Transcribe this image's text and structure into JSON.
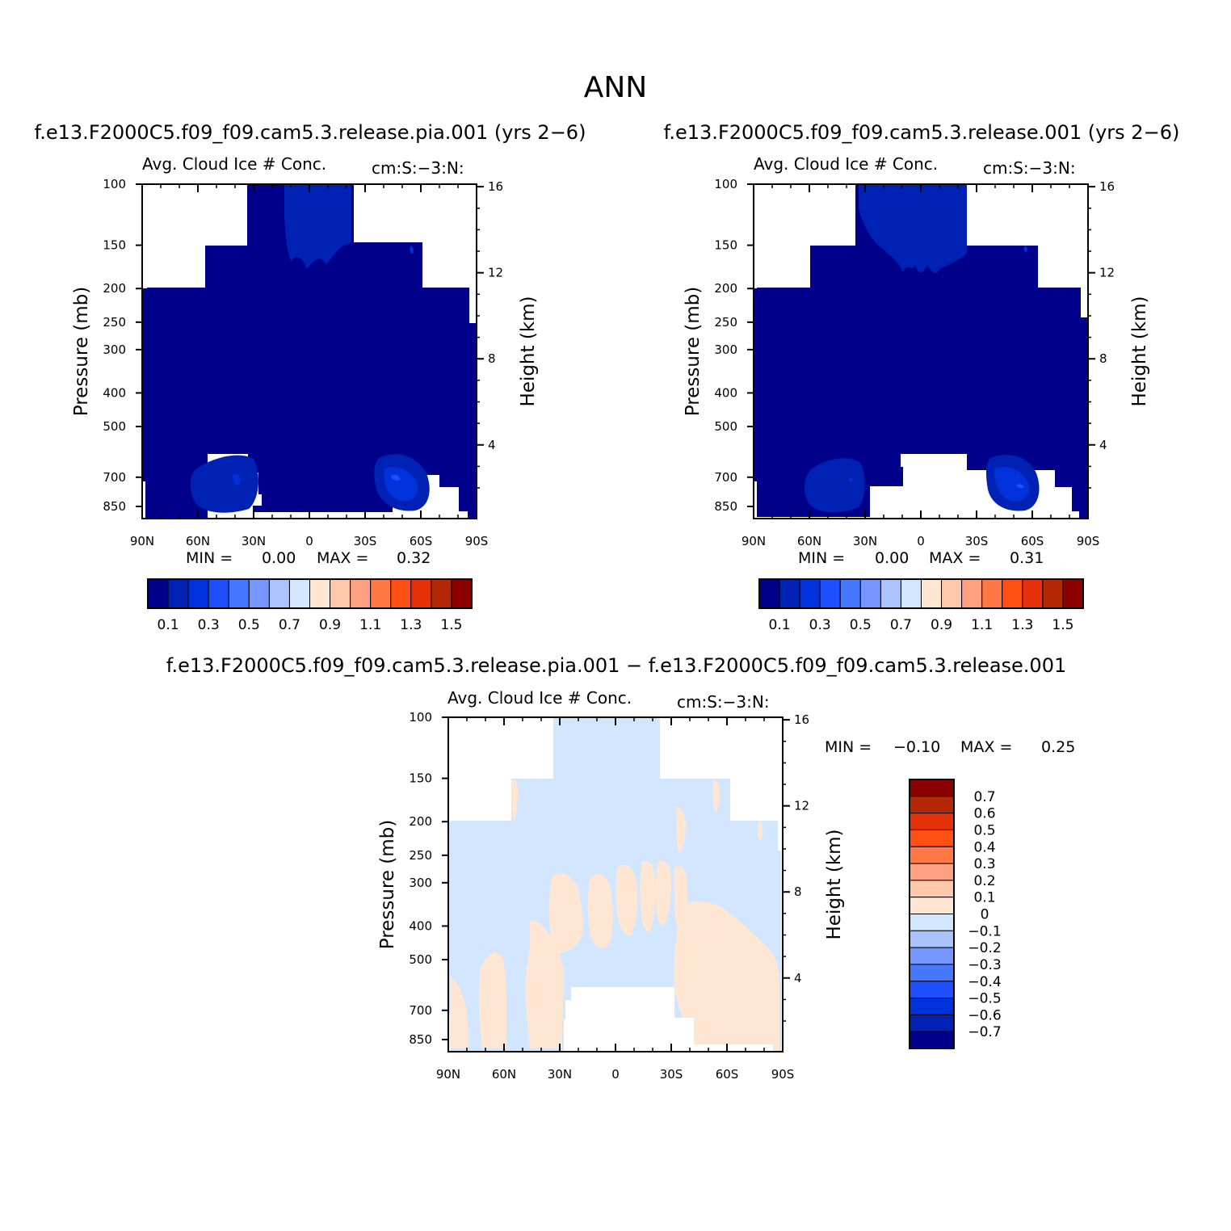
{
  "figure_title": "ANN",
  "panels": [
    {
      "case_title": "f.e13.F2000C5.f09_f09.cam5.3.release.pia.001 (yrs 2−6)",
      "var_title": "Avg. Cloud Ice # Conc.",
      "units": "cm:S:−3:N:",
      "ylabel": "Pressure (mb)",
      "ylabel_right": "Height (km)",
      "min_label": "MIN =",
      "min_value": "0.00",
      "max_label": "MAX =",
      "max_value": "0.32"
    },
    {
      "case_title": "f.e13.F2000C5.f09_f09.cam5.3.release.001 (yrs 2−6)",
      "var_title": "Avg. Cloud Ice # Conc.",
      "units": "cm:S:−3:N:",
      "ylabel": "Pressure (mb)",
      "ylabel_right": "Height (km)",
      "min_label": "MIN =",
      "min_value": "0.00",
      "max_label": "MAX =",
      "max_value": "0.31"
    },
    {
      "case_title": "f.e13.F2000C5.f09_f09.cam5.3.release.pia.001 − f.e13.F2000C5.f09_f09.cam5.3.release.001",
      "var_title": "Avg. Cloud Ice # Conc.",
      "units": "cm:S:−3:N:",
      "ylabel": "Pressure (mb)",
      "ylabel_right": "Height (km)",
      "min_label": "MIN =",
      "min_value": "−0.10",
      "max_label": "MAX =",
      "max_value": "0.25"
    }
  ],
  "chart_data": [
    {
      "type": "heatmap",
      "title": "Avg. Cloud Ice # Conc.",
      "units": "cm:S:−3:N:",
      "x_ticks": [
        "90N",
        "60N",
        "30N",
        "0",
        "30S",
        "60S",
        "90S"
      ],
      "x_values": [
        90,
        60,
        30,
        0,
        -30,
        -60,
        -90
      ],
      "y_ticks": [
        "100",
        "150",
        "200",
        "250",
        "300",
        "400",
        "500",
        "700",
        "850"
      ],
      "y_values": [
        100,
        150,
        200,
        250,
        300,
        400,
        500,
        700,
        850
      ],
      "y_scale": "log",
      "y_right_ticks": [
        "16",
        "12",
        "8",
        "4"
      ],
      "min": 0.0,
      "max": 0.32,
      "levels": [
        0.1,
        0.2,
        0.3,
        0.4,
        0.5,
        0.6,
        0.7,
        0.8,
        0.9,
        1.0,
        1.1,
        1.2,
        1.3,
        1.4,
        1.5
      ],
      "colorbar_labels": [
        "0.1",
        "0.3",
        "0.5",
        "0.7",
        "0.9",
        "1.1",
        "1.3",
        "1.5"
      ]
    },
    {
      "type": "heatmap",
      "title": "Avg. Cloud Ice # Conc.",
      "units": "cm:S:−3:N:",
      "x_ticks": [
        "90N",
        "60N",
        "30N",
        "0",
        "30S",
        "60S",
        "90S"
      ],
      "x_values": [
        90,
        60,
        30,
        0,
        -30,
        -60,
        -90
      ],
      "y_ticks": [
        "100",
        "150",
        "200",
        "250",
        "300",
        "400",
        "500",
        "700",
        "850"
      ],
      "y_values": [
        100,
        150,
        200,
        250,
        300,
        400,
        500,
        700,
        850
      ],
      "y_scale": "log",
      "y_right_ticks": [
        "16",
        "12",
        "8",
        "4"
      ],
      "min": 0.0,
      "max": 0.31,
      "levels": [
        0.1,
        0.2,
        0.3,
        0.4,
        0.5,
        0.6,
        0.7,
        0.8,
        0.9,
        1.0,
        1.1,
        1.2,
        1.3,
        1.4,
        1.5
      ],
      "colorbar_labels": [
        "0.1",
        "0.3",
        "0.5",
        "0.7",
        "0.9",
        "1.1",
        "1.3",
        "1.5"
      ]
    },
    {
      "type": "heatmap",
      "title": "Avg. Cloud Ice # Conc.",
      "units": "cm:S:−3:N:",
      "x_ticks": [
        "90N",
        "60N",
        "30N",
        "0",
        "30S",
        "60S",
        "90S"
      ],
      "x_values": [
        90,
        60,
        30,
        0,
        -30,
        -60,
        -90
      ],
      "y_ticks": [
        "100",
        "150",
        "200",
        "250",
        "300",
        "400",
        "500",
        "700",
        "850"
      ],
      "y_values": [
        100,
        150,
        200,
        250,
        300,
        400,
        500,
        700,
        850
      ],
      "y_scale": "log",
      "y_right_ticks": [
        "16",
        "12",
        "8",
        "4"
      ],
      "min": -0.1,
      "max": 0.25,
      "levels": [
        -0.7,
        -0.6,
        -0.5,
        -0.4,
        -0.3,
        -0.2,
        -0.1,
        0,
        0.1,
        0.2,
        0.3,
        0.4,
        0.5,
        0.6,
        0.7
      ],
      "colorbar_labels": [
        "0.7",
        "0.6",
        "0.5",
        "0.4",
        "0.3",
        "0.2",
        "0.1",
        "0",
        "−0.1",
        "−0.2",
        "−0.3",
        "−0.4",
        "−0.5",
        "−0.6",
        "−0.7"
      ]
    }
  ],
  "colors": {
    "palette": [
      "#00008a",
      "#0022b4",
      "#0032dc",
      "#1e50ff",
      "#4678ff",
      "#7896ff",
      "#aac3ff",
      "#d2e6ff",
      "#ffe6d2",
      "#ffc8aa",
      "#ffa082",
      "#ff7846",
      "#ff5014",
      "#e6320a",
      "#b42805",
      "#8c0000"
    ],
    "diff_palette_top_to_bottom": [
      "#8c0000",
      "#b42805",
      "#e6320a",
      "#ff5014",
      "#ff7846",
      "#ffa082",
      "#ffc8aa",
      "#ffe6d2",
      "#d2e6ff",
      "#aac3ff",
      "#7896ff",
      "#4678ff",
      "#1e50ff",
      "#0032dc",
      "#0022b4",
      "#00008a"
    ]
  }
}
